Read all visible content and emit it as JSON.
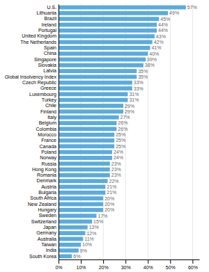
{
  "chart_data": {
    "type": "bar",
    "orientation": "horizontal",
    "categories": [
      "U.S.",
      "Lithuania",
      "Brazil",
      "Ireland",
      "Portugal",
      "United Kingdom",
      "The Netherlands",
      "Spain",
      "China",
      "Singapore",
      "Slovakia",
      "Latvia",
      "Global Insolvency Index",
      "Czech Republic",
      "Greece",
      "Luxembourg",
      "Turkey",
      "Chile",
      "Finland",
      "Italy",
      "Belgium",
      "Colombia",
      "Morocco",
      "France",
      "Canada",
      "Poland",
      "Norway",
      "Russia",
      "Hong Kong",
      "Romania",
      "Denmark",
      "Austria",
      "Bulgaria",
      "South Africa",
      "New Zealand",
      "Hungary",
      "Sweden",
      "Switzerland",
      "Japan",
      "Germany",
      "Australia",
      "Taiwan",
      "India",
      "South Korea"
    ],
    "values": [
      57,
      49,
      45,
      44,
      44,
      43,
      42,
      41,
      40,
      39,
      38,
      35,
      35,
      33,
      33,
      31,
      31,
      29,
      29,
      27,
      26,
      26,
      25,
      25,
      25,
      24,
      24,
      23,
      23,
      23,
      22,
      21,
      21,
      20,
      20,
      20,
      17,
      15,
      13,
      12,
      11,
      10,
      9,
      6
    ],
    "value_labels": [
      "57%",
      "49%",
      "45%",
      "44%",
      "44%",
      "43%",
      "42%",
      "41%",
      "40%",
      "39%",
      "38%",
      "35%",
      "35%",
      "33%",
      "33%",
      "31%",
      "31%",
      "29%",
      "29%",
      "27%",
      "26%",
      "26%",
      "25%",
      "25%",
      "25%",
      "24%",
      "24%",
      "23%",
      "23%",
      "23%",
      "22%",
      "21%",
      "21%",
      "20%",
      "20%",
      "20%",
      "17%",
      "15%",
      "13%",
      "12%",
      "11%",
      "10%",
      "9%",
      "6%"
    ],
    "color": "#5aabde",
    "xlim": [
      0,
      63
    ],
    "xticks": [
      {
        "value": 0,
        "label": "0%"
      },
      {
        "value": 10,
        "label": "10%"
      },
      {
        "value": 20,
        "label": "20%"
      },
      {
        "value": 30,
        "label": "30%"
      },
      {
        "value": 40,
        "label": "40%"
      },
      {
        "value": 50,
        "label": "50%"
      },
      {
        "value": 60,
        "label": "60%"
      }
    ],
    "grid": true,
    "data_labels": true
  }
}
